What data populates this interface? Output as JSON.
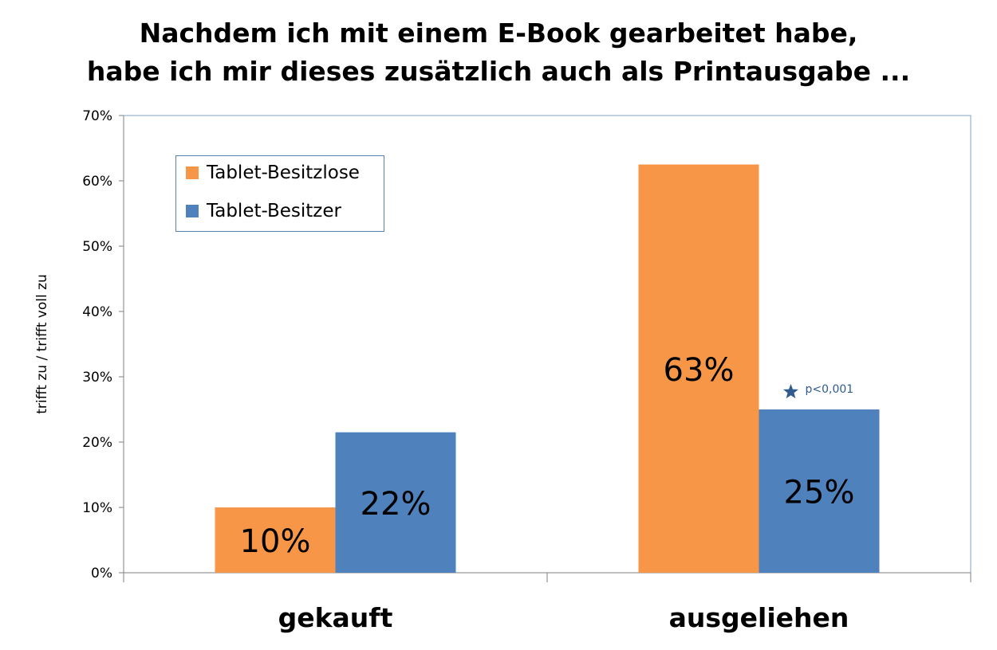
{
  "title": {
    "line1": "Nachdem ich mit einem E-Book gearbeitet habe,",
    "line2": "habe ich mir dieses zusätzlich auch als Printausgabe ..."
  },
  "annotation": {
    "star_icon": "star-icon",
    "text": "p<0,001",
    "color": "#2f5b8e"
  },
  "chart_data": {
    "type": "bar",
    "categories": [
      "gekauft",
      "ausgeliehen"
    ],
    "series": [
      {
        "name": "Tablet-Besitzlose",
        "color": "#f79646",
        "values": [
          10,
          62.5
        ],
        "labels": [
          "10%",
          "63%"
        ]
      },
      {
        "name": "Tablet-Besitzer",
        "color": "#4f81bd",
        "values": [
          21.5,
          25
        ],
        "labels": [
          "22%",
          "25%"
        ]
      }
    ],
    "ylabel": "trifft zu / trifft voll zu",
    "ylim": [
      0,
      70
    ],
    "yticks": [
      0,
      10,
      20,
      30,
      40,
      50,
      60,
      70
    ],
    "ytick_labels": [
      "0%",
      "10%",
      "20%",
      "30%",
      "40%",
      "50%",
      "60%",
      "70%"
    ],
    "grid": false,
    "legend_position": "top-left"
  }
}
